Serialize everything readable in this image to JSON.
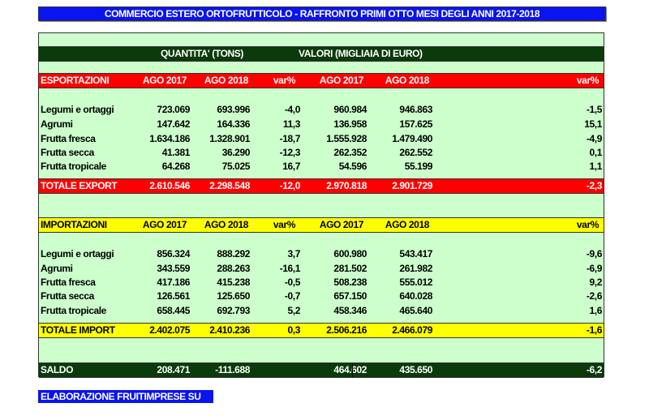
{
  "title": "COMMERCIO ESTERO ORTOFRUTTICOLO - RAFFRONTO PRIMI OTTO MESI DEGLI ANNI 2017-2018",
  "group_headers": {
    "quantity": "QUANTITA' (TONS)",
    "value": "VALORI (MIGLIAIA DI EURO)"
  },
  "colors": {
    "title_bg": "#0a14f0",
    "table_bg": "#ccffcc",
    "dark_green": "#0b3a0b",
    "export_red": "#ff0000",
    "import_yellow": "#ffff00"
  },
  "export": {
    "header": [
      "ESPORTAZIONI",
      "AGO 2017",
      "AGO 2018",
      "var%",
      "AGO 2017",
      "AGO 2018",
      "var%"
    ],
    "rows": [
      [
        "Legumi e ortaggi",
        "723.069",
        "693.996",
        "-4,0",
        "960.984",
        "946.863",
        "-1,5"
      ],
      [
        "Agrumi",
        "147.642",
        "164.336",
        "11,3",
        "136.958",
        "157.625",
        "15,1"
      ],
      [
        "Frutta fresca",
        "1.634.186",
        "1.328.901",
        "-18,7",
        "1.555.928",
        "1.479.490",
        "-4,9"
      ],
      [
        "Frutta secca",
        "41.381",
        "36.290",
        "-12,3",
        "262.352",
        "262.552",
        "0,1"
      ],
      [
        "Frutta tropicale",
        "64.268",
        "75.025",
        "16,7",
        "54.596",
        "55.199",
        "1,1"
      ]
    ],
    "total": [
      "TOTALE EXPORT",
      "2.610.546",
      "2.298.548",
      "-12,0",
      "2.970.818",
      "2.901.729",
      "-2,3"
    ]
  },
  "import": {
    "header": [
      "IMPORTAZIONI",
      "AGO 2017",
      "AGO 2018",
      "var%",
      "AGO 2017",
      "AGO 2018",
      "var%"
    ],
    "rows": [
      [
        "Legumi e ortaggi",
        "856.324",
        "888.292",
        "3,7",
        "600.980",
        "543.417",
        "-9,6"
      ],
      [
        "Agrumi",
        "343.559",
        "288.263",
        "-16,1",
        "281.502",
        "261.982",
        "-6,9"
      ],
      [
        "Frutta fresca",
        "417.186",
        "415.238",
        "-0,5",
        "508.238",
        "555.012",
        "9,2"
      ],
      [
        "Frutta secca",
        "126.561",
        "125.650",
        "-0,7",
        "657.150",
        "640.028",
        "-2,6"
      ],
      [
        "Frutta tropicale",
        "658.445",
        "692.793",
        "5,2",
        "458.346",
        "465.640",
        "1,6"
      ]
    ],
    "total": [
      "TOTALE IMPORT",
      "2.402.075",
      "2.410.236",
      "0,3",
      "2.506.216",
      "2.466.079",
      "-1,6"
    ]
  },
  "saldo": [
    "SALDO",
    "208.471",
    "-111.688",
    "",
    "464.602",
    "435.650",
    "-6,2"
  ],
  "footer": "ELABORAZIONE FRUITIMPRESE SU DATI  ISTAT"
}
